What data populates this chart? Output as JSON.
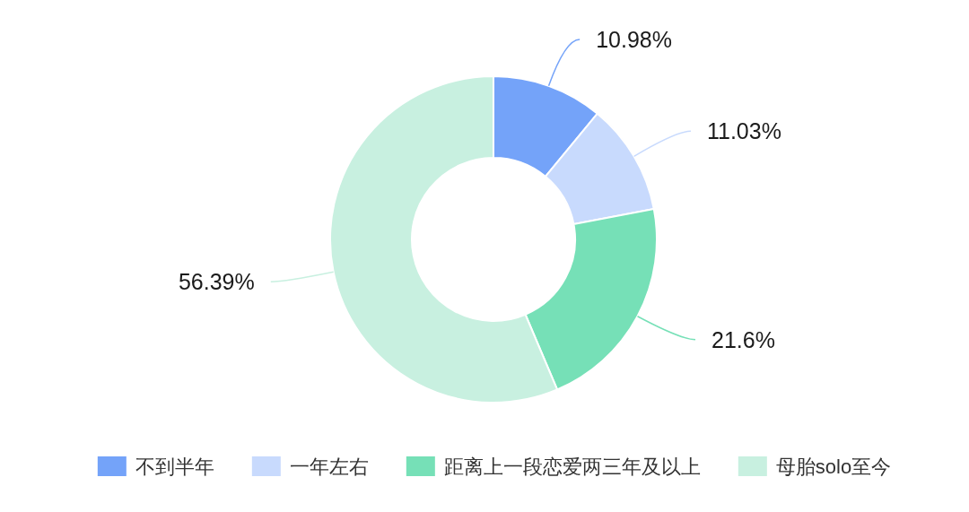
{
  "chart_data": {
    "type": "donut",
    "categories": [
      "不到半年",
      "一年左右",
      "距离上一段恋爱两三年及以上",
      "母胎solo至今"
    ],
    "values": [
      10.98,
      11.03,
      21.6,
      56.39
    ],
    "colors": [
      "#74a3f9",
      "#c8dafd",
      "#76e0b7",
      "#c8f0e0"
    ],
    "value_labels": [
      "10.98%",
      "11.03%",
      "21.6%",
      "56.39%"
    ],
    "legend": "bottom"
  }
}
